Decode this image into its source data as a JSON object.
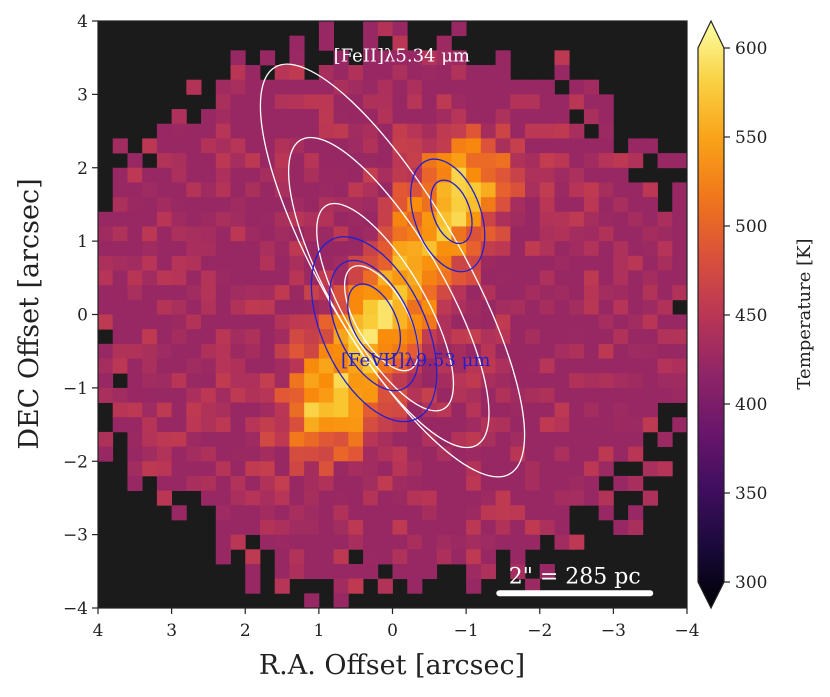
{
  "chart_data": {
    "type": "heatmap",
    "xlabel": "R.A. Offset [arcsec]",
    "ylabel": "DEC Offset [arcsec]",
    "xlim": [
      4,
      -4
    ],
    "ylim": [
      -4,
      4
    ],
    "xticks": [
      4,
      3,
      2,
      1,
      0,
      -1,
      -2,
      -3,
      -4
    ],
    "yticks": [
      4,
      3,
      2,
      1,
      0,
      -1,
      -2,
      -3,
      -4
    ],
    "xtick_labels": [
      "4",
      "3",
      "2",
      "1",
      "0",
      "−1",
      "−2",
      "−3",
      "−4"
    ],
    "ytick_labels": [
      "4",
      "3",
      "2",
      "1",
      "0",
      "−1",
      "−2",
      "−3",
      "−4"
    ],
    "background_color": "#1b1b1b",
    "colormap": "inferno",
    "colorbar": {
      "label": "Temperature [K]",
      "min": 300,
      "max": 600,
      "extend": "both",
      "ticks": [
        300,
        350,
        400,
        450,
        500,
        550,
        600
      ]
    },
    "emission_model": {
      "description_units": "arcsec / Kelvin",
      "base_temperature": 425,
      "hot_ridge": {
        "from": [
          0.9,
          -1.3
        ],
        "to": [
          -1.0,
          1.8
        ],
        "width": 0.45,
        "peak_temperature": 555
      },
      "hot_knots": [
        {
          "ra": 0.1,
          "dec": 0.0,
          "peak_temperature": 590
        },
        {
          "ra": -0.9,
          "dec": 1.7,
          "peak_temperature": 570
        },
        {
          "ra": 0.7,
          "dec": -1.2,
          "peak_temperature": 570
        }
      ]
    },
    "contours": [
      {
        "name": "[FeII]λ5.34 μm",
        "color": "#ffffff",
        "label_ra": 0.8,
        "label_dec": 3.45,
        "levels": [
          {
            "center": [
              0.0,
              0.6
            ],
            "axes": [
              0.95,
              3.2
            ],
            "angle": -30
          },
          {
            "center": [
              0.05,
              0.3
            ],
            "axes": [
              0.75,
              2.4
            ],
            "angle": -30
          },
          {
            "center": [
              0.1,
              0.1
            ],
            "axes": [
              0.55,
              1.6
            ],
            "angle": -30
          },
          {
            "center": [
              0.15,
              -0.05
            ],
            "axes": [
              0.35,
              0.8
            ],
            "angle": -30
          }
        ]
      },
      {
        "name": "[FeVII]λ9.53 μm",
        "color": "#2020d0",
        "label_ra": 0.7,
        "label_dec": -0.7,
        "levels": [
          {
            "center": [
              0.25,
              -0.2
            ],
            "axes": [
              0.7,
              1.35
            ],
            "angle": -25
          },
          {
            "center": [
              0.25,
              -0.15
            ],
            "axes": [
              0.5,
              0.95
            ],
            "angle": -25
          },
          {
            "center": [
              0.25,
              -0.1
            ],
            "axes": [
              0.3,
              0.55
            ],
            "angle": -25
          },
          {
            "center": [
              -0.75,
              1.35
            ],
            "axes": [
              0.45,
              0.8
            ],
            "angle": -20
          },
          {
            "center": [
              -0.8,
              1.4
            ],
            "axes": [
              0.25,
              0.45
            ],
            "angle": -20
          }
        ]
      }
    ],
    "scale_bar": {
      "label": "2\" = 285 pc",
      "from_ra": -1.45,
      "to_ra": -3.5,
      "dec": -3.8
    }
  }
}
